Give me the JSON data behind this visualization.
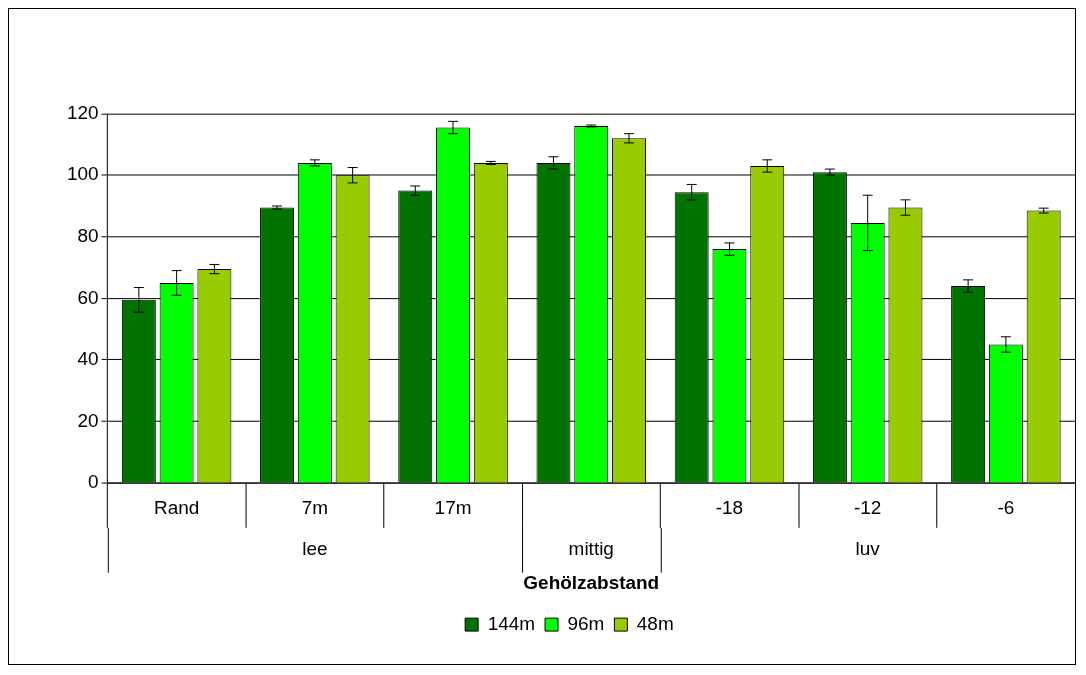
{
  "chart_data": {
    "type": "bar",
    "xlabel": "Gehölzabstand",
    "categories": [
      "Rand",
      "7m",
      "17m",
      null,
      "-18",
      "-12",
      "-6"
    ],
    "series": [
      {
        "name": "144m",
        "color": "#007300",
        "values": [
          59.5,
          89.5,
          95,
          104,
          94.5,
          101,
          64
        ],
        "errors": [
          4,
          0.5,
          1.5,
          2,
          2.5,
          1,
          2
        ]
      },
      {
        "name": "96m",
        "color": "#00ff00",
        "values": [
          65,
          104,
          115.5,
          116,
          76,
          84.5,
          45
        ],
        "errors": [
          4,
          1,
          2,
          0.3,
          2,
          9,
          2.5
        ]
      },
      {
        "name": "48m",
        "color": "#99cc00",
        "values": [
          69.5,
          100,
          104,
          112,
          103,
          89.5,
          88.5
        ],
        "errors": [
          1.5,
          2.5,
          0.5,
          1.5,
          2,
          2.5,
          0.8
        ]
      }
    ],
    "annotations": [
      "lee",
      "mittig",
      "luv"
    ],
    "ylim": [
      0,
      120
    ],
    "yticks": [
      0,
      20,
      40,
      60,
      80,
      100,
      120
    ],
    "grid": "y",
    "legend": "bottom"
  }
}
